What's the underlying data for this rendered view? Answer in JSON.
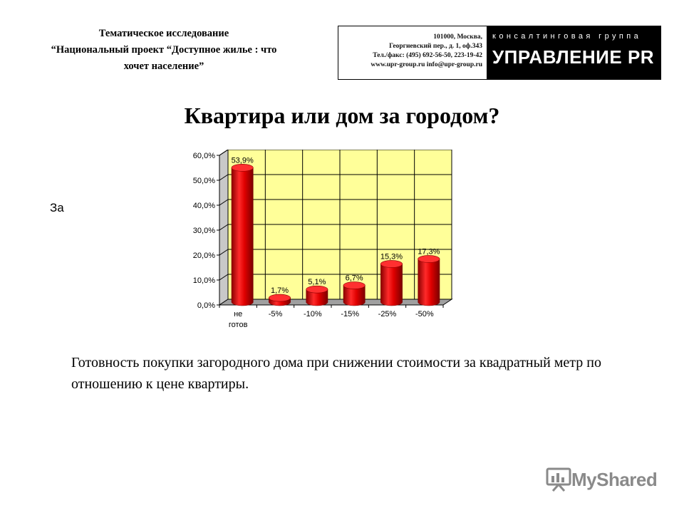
{
  "header": {
    "line1": "Тематическое исследование",
    "line2": "“Национальный проект “Доступное жилье : что",
    "line3": "хочет население”"
  },
  "logo": {
    "contacts": [
      "101000, Москва,",
      "Георгиевский пер., д. 1, оф.343",
      "Тел./факс: (495) 692-56-50, 223-19-42",
      "www.upr-group.ru     info@upr-group.ru"
    ],
    "tagline": "консалтинговая группа",
    "name": "УПРАВЛЕНИЕ PR"
  },
  "page_title": "Квартира или дом за городом?",
  "side_text": "За",
  "caption": "Готовность покупки загородного дома при снижении стоимости за квадратный метр по отношению к цене квартиры.",
  "watermark": "MyShared",
  "chart_data": {
    "type": "bar",
    "title": "",
    "xlabel": "",
    "ylabel": "",
    "categories": [
      [
        "не",
        "готов"
      ],
      [
        "-5%"
      ],
      [
        "-10%"
      ],
      [
        "-15%"
      ],
      [
        "-25%"
      ],
      [
        "-50%"
      ]
    ],
    "values": [
      53.9,
      1.7,
      5.1,
      6.7,
      15.3,
      17.3
    ],
    "value_labels": [
      "53,9%",
      "1,7%",
      "5,1%",
      "6,7%",
      "15,3%",
      "17,3%"
    ],
    "yticks": [
      "0,0%",
      "10,0%",
      "20,0%",
      "30,0%",
      "40,0%",
      "50,0%",
      "60,0%"
    ],
    "ylim": [
      0,
      60
    ],
    "grid": true,
    "legend": "none",
    "bar_color": "#e00000",
    "plot_color": "#ffff99"
  }
}
